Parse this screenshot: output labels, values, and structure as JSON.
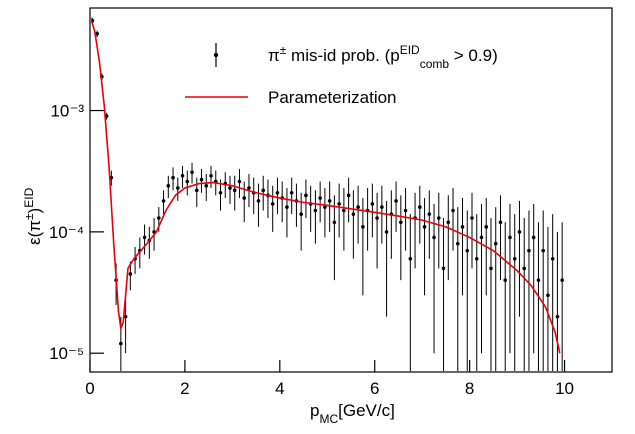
{
  "chart_data": {
    "type": "scatter",
    "xlabel": [
      {
        "text": "p"
      },
      {
        "text": "MC",
        "shift": "sub"
      },
      {
        "text": "[GeV/c]"
      }
    ],
    "ylabel": [
      {
        "text": "ε(π"
      },
      {
        "text": "±",
        "shift": "super"
      },
      {
        "text": ")"
      },
      {
        "text": "EID",
        "shift": "super"
      }
    ],
    "xlim": [
      0,
      11
    ],
    "ylim": [
      7e-06,
      0.007
    ],
    "log_y": true,
    "xticks": [
      0,
      2,
      4,
      6,
      8,
      10
    ],
    "yticks": [
      {
        "value": 1e-05,
        "label": "10⁻⁵"
      },
      {
        "value": 0.0001,
        "label": "10⁻⁴"
      },
      {
        "value": 0.001,
        "label": "10⁻³"
      }
    ],
    "series": [
      {
        "type": "errorbar",
        "color": "#000000",
        "name": [
          {
            "text": "π"
          },
          {
            "text": "±",
            "shift": "super"
          },
          {
            "text": " mis-id prob. (p"
          },
          {
            "text": "EID",
            "shift": "super"
          },
          {
            "text": "comb",
            "shift": "sub"
          },
          {
            "text": " > 0.9)"
          }
        ],
        "x": [
          0.05,
          0.15,
          0.25,
          0.35,
          0.45,
          0.55,
          0.65,
          0.75,
          0.85,
          0.95,
          1.05,
          1.15,
          1.25,
          1.35,
          1.45,
          1.55,
          1.65,
          1.75,
          1.85,
          1.95,
          2.05,
          2.15,
          2.25,
          2.35,
          2.45,
          2.55,
          2.65,
          2.75,
          2.85,
          2.95,
          3.05,
          3.15,
          3.25,
          3.35,
          3.45,
          3.55,
          3.65,
          3.75,
          3.85,
          3.95,
          4.05,
          4.15,
          4.25,
          4.35,
          4.45,
          4.55,
          4.65,
          4.75,
          4.85,
          4.95,
          5.05,
          5.15,
          5.25,
          5.35,
          5.45,
          5.55,
          5.65,
          5.75,
          5.85,
          5.95,
          6.05,
          6.15,
          6.25,
          6.35,
          6.45,
          6.55,
          6.65,
          6.75,
          6.85,
          6.95,
          7.05,
          7.15,
          7.25,
          7.35,
          7.45,
          7.55,
          7.65,
          7.75,
          7.85,
          7.95,
          8.05,
          8.15,
          8.25,
          8.35,
          8.45,
          8.55,
          8.65,
          8.75,
          8.85,
          8.95,
          9.05,
          9.15,
          9.25,
          9.35,
          9.45,
          9.55,
          9.65,
          9.75,
          9.85,
          9.95
        ],
        "values": [
          0.0055,
          0.0043,
          0.0019,
          0.0009,
          0.00028,
          4e-05,
          1.2e-05,
          2e-05,
          4.5e-05,
          6e-05,
          7e-05,
          9e-05,
          8.5e-05,
          0.0001,
          0.00013,
          0.00018,
          0.00024,
          0.00028,
          0.00023,
          0.00029,
          0.00026,
          0.00031,
          0.00022,
          0.00027,
          0.00024,
          0.00029,
          0.00026,
          0.00021,
          0.00025,
          0.00023,
          0.00022,
          0.00026,
          0.00019,
          0.00023,
          0.00021,
          0.00018,
          0.00022,
          0.0002,
          0.00017,
          0.00021,
          0.00019,
          0.00016,
          0.00021,
          0.00018,
          0.00014,
          0.0002,
          0.00017,
          0.00015,
          0.00019,
          0.00016,
          0.00018,
          0.00012,
          0.00017,
          0.00015,
          0.0002,
          0.00014,
          0.00016,
          0.00011,
          0.00015,
          0.00017,
          0.00013,
          0.00016,
          0.0001,
          0.00014,
          0.00018,
          0.00012,
          0.00015,
          6e-05,
          0.00013,
          0.00016,
          0.00011,
          0.00014,
          9e-05,
          0.00013,
          5e-05,
          0.00012,
          0.00015,
          8e-05,
          0.00011,
          7e-05,
          0.00013,
          6e-05,
          9e-05,
          0.00011,
          5e-05,
          8e-05,
          0.00012,
          4e-05,
          9e-05,
          6e-05,
          0.0001,
          5e-05,
          7e-05,
          9e-05,
          4e-05,
          7e-05,
          3e-05,
          6e-05,
          2e-05,
          4e-05
        ],
        "errors": [
          0.0003,
          0.00025,
          0.00012,
          6e-05,
          4e-05,
          1.5e-05,
          8e-06,
          1e-05,
          1.2e-05,
          1.5e-05,
          2e-05,
          2.5e-05,
          2.5e-05,
          3e-05,
          3e-05,
          4e-05,
          5e-05,
          6e-05,
          5e-05,
          6e-05,
          6e-05,
          6e-05,
          6e-05,
          6e-05,
          6e-05,
          6e-05,
          6e-05,
          6e-05,
          6e-05,
          6e-05,
          7e-05,
          7e-05,
          7e-05,
          7e-05,
          7e-05,
          7e-05,
          7e-05,
          7e-05,
          7e-05,
          7e-05,
          7e-05,
          7e-05,
          7e-05,
          7e-05,
          7e-05,
          7e-05,
          7e-05,
          7e-05,
          7e-05,
          7e-05,
          8e-05,
          8e-05,
          8e-05,
          8e-05,
          8e-05,
          8e-05,
          8e-05,
          8e-05,
          8e-05,
          8e-05,
          8e-05,
          8e-05,
          8e-05,
          8e-05,
          8e-05,
          8e-05,
          8e-05,
          8e-05,
          8e-05,
          8e-05,
          8e-05,
          8e-05,
          8e-05,
          8e-05,
          8e-05,
          8e-05,
          8e-05,
          8e-05,
          8e-05,
          8e-05,
          8e-05,
          8e-05,
          8e-05,
          8e-05,
          8e-05,
          8e-05,
          8e-05,
          8e-05,
          8e-05,
          8e-05,
          8e-05,
          8e-05,
          8e-05,
          8e-05,
          8e-05,
          8e-05,
          8e-05,
          8e-05,
          8e-05,
          8e-05
        ]
      },
      {
        "type": "line",
        "color": "#e8000b",
        "name": [
          {
            "text": "Parameterization"
          }
        ],
        "x": [
          0,
          0.1,
          0.2,
          0.3,
          0.4,
          0.5,
          0.6,
          0.65,
          0.7,
          0.8,
          0.9,
          1.0,
          1.2,
          1.4,
          1.6,
          1.8,
          2.0,
          2.3,
          2.6,
          3.0,
          3.5,
          4.0,
          4.5,
          5.0,
          5.5,
          6.0,
          6.5,
          7.0,
          7.5,
          8.0,
          8.5,
          9.0,
          9.3,
          9.6,
          9.8,
          9.9
        ],
        "values": [
          0.006,
          0.0045,
          0.0025,
          0.0011,
          0.00035,
          8e-05,
          2.2e-05,
          1.6e-05,
          1.8e-05,
          5e-05,
          5.8e-05,
          6.5e-05,
          8e-05,
          0.0001,
          0.00015,
          0.0002,
          0.00023,
          0.00025,
          0.000255,
          0.00024,
          0.00021,
          0.00019,
          0.000175,
          0.000165,
          0.000155,
          0.000145,
          0.000135,
          0.000125,
          0.00011,
          9e-05,
          7e-05,
          4.8e-05,
          3.6e-05,
          2.4e-05,
          1.5e-05,
          1e-05
        ]
      }
    ]
  }
}
